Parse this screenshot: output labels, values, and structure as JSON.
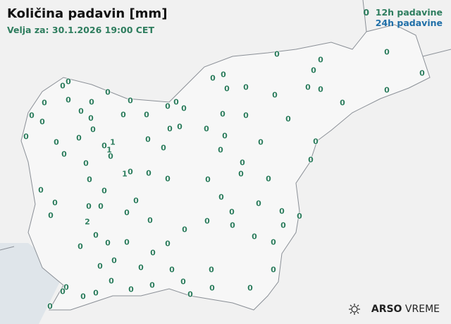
{
  "header": {
    "title": "Količina padavin [mm]",
    "valid_for": "Velja za: 30.1.2026 19:00 CET"
  },
  "legend": {
    "sample_value": "0",
    "h12_label": "12h padavine",
    "h24_label": "24h padavine",
    "h12_color": "#2e7d5e",
    "h24_color": "#1f6fa8"
  },
  "brand": {
    "strong": "ARSO",
    "light": "VREME",
    "icon": "sun-cloud-icon"
  },
  "stations_12h_values": [
    0,
    0,
    0,
    0,
    0,
    0,
    0,
    0,
    0,
    0,
    0,
    0,
    0,
    0,
    0,
    0,
    0,
    0,
    0,
    0,
    0,
    0,
    0,
    0,
    0,
    0,
    0,
    0,
    0,
    0,
    0,
    0,
    0,
    0,
    0,
    0,
    0,
    0,
    0,
    0,
    0,
    0,
    0,
    0,
    1,
    0,
    1,
    0,
    0,
    0,
    0,
    0,
    0,
    0,
    0,
    0,
    1,
    0,
    0,
    0,
    0,
    0,
    0,
    0,
    0,
    0,
    0,
    0,
    0,
    0,
    0,
    0,
    0,
    0,
    0,
    0,
    0,
    0,
    0,
    2,
    0,
    0,
    0,
    0,
    0,
    0,
    0,
    0,
    0,
    0,
    0,
    0,
    0,
    0,
    0,
    0,
    0,
    0,
    0,
    0,
    0,
    0,
    0,
    0,
    0,
    0,
    0,
    0
  ]
}
